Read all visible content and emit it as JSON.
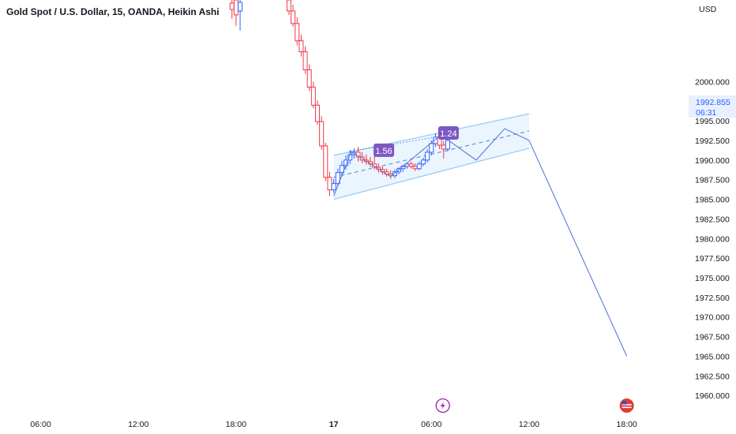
{
  "header": {
    "title": "Gold Spot / U.S. Dollar, 15, OANDA, Heikin Ashi"
  },
  "price_axis": {
    "currency": "USD"
  },
  "price_tag": {
    "price": "1992.855",
    "countdown": "06:31"
  },
  "colors": {
    "bull": "#2962ff",
    "bear": "#f23645",
    "channel_fill": "#e3f2fd",
    "channel_line": "#90caf9",
    "projection": "#5b7bd6",
    "label_bg": "#7e57c2",
    "price_tag_bg": "#e8f0fe",
    "price_tag_text": "#2962ff"
  },
  "annotations": [
    {
      "text": "1.56",
      "x": 3.08,
      "y": 1991.2
    },
    {
      "text": "1.24",
      "x": 7.05,
      "y": 1993.4
    }
  ],
  "events": [
    {
      "icon": "lightning-icon",
      "x": 6.7,
      "color": "#9c27b0"
    },
    {
      "icon": "us-flag-icon",
      "x": 18.0,
      "color": "#e53935"
    }
  ],
  "chart_data": {
    "type": "candlestick",
    "x_unit": "hours relative to 00:00 on the 17th",
    "x_range": [
      -20.5,
      21.8
    ],
    "ylim": [
      1957.9,
      2010.4
    ],
    "x_ticks": [
      {
        "x": -18,
        "label": "06:00"
      },
      {
        "x": -12,
        "label": "12:00"
      },
      {
        "x": -6,
        "label": "18:00"
      },
      {
        "x": 0,
        "label": "17",
        "bold": true
      },
      {
        "x": 6,
        "label": "06:00"
      },
      {
        "x": 12,
        "label": "12:00"
      },
      {
        "x": 18,
        "label": "18:00"
      }
    ],
    "y_ticks": [
      2000.0,
      1997.5,
      1995.0,
      1992.5,
      1990.0,
      1987.5,
      1985.0,
      1982.5,
      1980.0,
      1977.5,
      1975.0,
      1972.5,
      1970.0,
      1967.5,
      1965.0,
      1962.5,
      1960.0
    ],
    "y_tick_labels": [
      "2000.000",
      "1997.500",
      "1995.000",
      "1992.500",
      "1990.000",
      "1987.500",
      "1985.000",
      "1982.500",
      "1980.000",
      "1977.500",
      "1975.000",
      "1972.500",
      "1970.000",
      "1967.500",
      "1965.000",
      "1962.500",
      "1960.000"
    ],
    "current_price": 1992.855,
    "candles": [
      {
        "x": -6.25,
        "o": 2010.0,
        "h": 2010.4,
        "l": 2008.0,
        "c": 2009.2
      },
      {
        "x": -6.0,
        "o": 2010.4,
        "h": 2010.4,
        "l": 2007.1,
        "c": 2008.5
      },
      {
        "x": -5.75,
        "o": 2009.0,
        "h": 2010.4,
        "l": 2006.5,
        "c": 2010.1
      },
      {
        "x": -2.75,
        "o": 2010.4,
        "h": 2010.4,
        "l": 2008.5,
        "c": 2009.0
      },
      {
        "x": -2.5,
        "o": 2009.0,
        "h": 2009.8,
        "l": 2007.0,
        "c": 2007.4
      },
      {
        "x": -2.25,
        "o": 2007.4,
        "h": 2008.2,
        "l": 2004.6,
        "c": 2005.2
      },
      {
        "x": -2.0,
        "o": 2005.2,
        "h": 2006.0,
        "l": 2003.2,
        "c": 2003.8
      },
      {
        "x": -1.75,
        "o": 2003.8,
        "h": 2004.5,
        "l": 2001.0,
        "c": 2001.5
      },
      {
        "x": -1.5,
        "o": 2001.5,
        "h": 2002.2,
        "l": 1998.8,
        "c": 1999.3
      },
      {
        "x": -1.25,
        "o": 1999.3,
        "h": 2000.0,
        "l": 1996.6,
        "c": 1997.0
      },
      {
        "x": -1.0,
        "o": 1997.0,
        "h": 1997.6,
        "l": 1994.5,
        "c": 1994.9
      },
      {
        "x": -0.75,
        "o": 1994.9,
        "h": 1995.6,
        "l": 1991.3,
        "c": 1991.8
      },
      {
        "x": -0.5,
        "o": 1991.8,
        "h": 1992.2,
        "l": 1987.3,
        "c": 1987.8
      },
      {
        "x": -0.25,
        "o": 1987.8,
        "h": 1988.5,
        "l": 1985.4,
        "c": 1986.2
      },
      {
        "x": 0.0,
        "o": 1986.2,
        "h": 1987.6,
        "l": 1985.8,
        "c": 1987.0
      },
      {
        "x": 0.25,
        "o": 1987.0,
        "h": 1988.9,
        "l": 1986.6,
        "c": 1988.4
      },
      {
        "x": 0.5,
        "o": 1988.4,
        "h": 1989.9,
        "l": 1987.9,
        "c": 1989.3
      },
      {
        "x": 0.75,
        "o": 1989.3,
        "h": 1990.6,
        "l": 1988.8,
        "c": 1990.0
      },
      {
        "x": 1.0,
        "o": 1990.0,
        "h": 1991.3,
        "l": 1989.5,
        "c": 1990.7
      },
      {
        "x": 1.25,
        "o": 1990.7,
        "h": 1991.5,
        "l": 1990.2,
        "c": 1991.0
      },
      {
        "x": 1.5,
        "o": 1991.0,
        "h": 1991.7,
        "l": 1989.8,
        "c": 1990.4
      },
      {
        "x": 1.75,
        "o": 1990.4,
        "h": 1991.0,
        "l": 1989.6,
        "c": 1990.0
      },
      {
        "x": 2.0,
        "o": 1990.0,
        "h": 1990.7,
        "l": 1989.4,
        "c": 1989.8
      },
      {
        "x": 2.25,
        "o": 1989.8,
        "h": 1990.4,
        "l": 1989.1,
        "c": 1989.5
      },
      {
        "x": 2.5,
        "o": 1989.5,
        "h": 1991.2,
        "l": 1988.8,
        "c": 1989.1
      },
      {
        "x": 2.75,
        "o": 1989.1,
        "h": 1989.6,
        "l": 1988.4,
        "c": 1988.8
      },
      {
        "x": 3.0,
        "o": 1988.8,
        "h": 1989.2,
        "l": 1988.1,
        "c": 1988.5
      },
      {
        "x": 3.25,
        "o": 1988.5,
        "h": 1988.9,
        "l": 1987.9,
        "c": 1988.2
      },
      {
        "x": 3.5,
        "o": 1988.2,
        "h": 1988.7,
        "l": 1987.6,
        "c": 1988.0
      },
      {
        "x": 3.75,
        "o": 1988.0,
        "h": 1988.8,
        "l": 1987.7,
        "c": 1988.5
      },
      {
        "x": 4.0,
        "o": 1988.5,
        "h": 1989.1,
        "l": 1988.2,
        "c": 1988.9
      },
      {
        "x": 4.25,
        "o": 1988.9,
        "h": 1989.4,
        "l": 1988.5,
        "c": 1989.2
      },
      {
        "x": 4.5,
        "o": 1989.2,
        "h": 1989.7,
        "l": 1988.9,
        "c": 1989.5
      },
      {
        "x": 4.75,
        "o": 1989.5,
        "h": 1989.8,
        "l": 1988.9,
        "c": 1989.2
      },
      {
        "x": 5.0,
        "o": 1989.2,
        "h": 1989.6,
        "l": 1988.6,
        "c": 1988.9
      },
      {
        "x": 5.25,
        "o": 1988.9,
        "h": 1989.8,
        "l": 1988.7,
        "c": 1989.5
      },
      {
        "x": 5.5,
        "o": 1989.5,
        "h": 1990.3,
        "l": 1989.2,
        "c": 1990.0
      },
      {
        "x": 5.75,
        "o": 1990.0,
        "h": 1991.4,
        "l": 1989.7,
        "c": 1991.0
      },
      {
        "x": 6.0,
        "o": 1991.0,
        "h": 1992.5,
        "l": 1990.6,
        "c": 1992.1
      },
      {
        "x": 6.25,
        "o": 1992.1,
        "h": 1993.4,
        "l": 1991.7,
        "c": 1992.9
      },
      {
        "x": 6.5,
        "o": 1992.9,
        "h": 1993.3,
        "l": 1991.4,
        "c": 1991.9
      },
      {
        "x": 6.75,
        "o": 1991.9,
        "h": 1992.4,
        "l": 1990.2,
        "c": 1991.4
      },
      {
        "x": 7.0,
        "o": 1991.4,
        "h": 1992.9,
        "l": 1991.1,
        "c": 1992.5
      }
    ],
    "channel": {
      "upper": [
        [
          0.0,
          1990.6
        ],
        [
          12.0,
          1995.9
        ]
      ],
      "lower": [
        [
          0.0,
          1985.0
        ],
        [
          12.0,
          1991.5
        ]
      ],
      "mid": [
        [
          0.0,
          1987.8
        ],
        [
          12.0,
          1993.7
        ]
      ]
    },
    "dotted_line": [
      [
        1.0,
        1991.1
      ],
      [
        7.6,
        1993.4
      ]
    ],
    "zigzag": [
      [
        0.0,
        1985.4
      ],
      [
        1.08,
        1991.1
      ],
      [
        3.5,
        1987.9
      ],
      [
        6.58,
        1993.2
      ],
      [
        8.75,
        1990.0
      ],
      [
        10.5,
        1994.0
      ],
      [
        12.0,
        1992.5
      ],
      [
        18.0,
        1965.0
      ]
    ]
  }
}
